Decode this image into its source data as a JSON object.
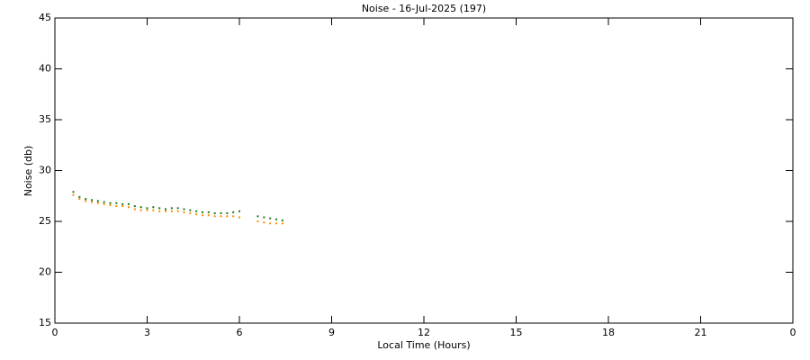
{
  "chart_data": {
    "type": "scatter",
    "title": "Noise - 16-Jul-2025 (197)",
    "x_label": "Local Time (Hours)",
    "y_label": "Noise (db)",
    "xlim": [
      0,
      24
    ],
    "ylim": [
      15,
      45
    ],
    "xticks": [
      0,
      3,
      6,
      9,
      12,
      15,
      18,
      21,
      {
        "value": 24,
        "label": "0"
      }
    ],
    "yticks": [
      15,
      20,
      25,
      30,
      35,
      40,
      45
    ],
    "series": [
      {
        "color": "#1a7a1a",
        "x": [
          0.6,
          0.8,
          1.0,
          1.2,
          1.4,
          1.6,
          1.8,
          2.0,
          2.2,
          2.4,
          2.6,
          2.8,
          3.0,
          3.2,
          3.4,
          3.6,
          3.8,
          4.0,
          4.2,
          4.4,
          4.6,
          4.8,
          5.0,
          5.2,
          5.4,
          5.6,
          5.8,
          6.0,
          6.6,
          6.8,
          7.0,
          7.2,
          7.4
        ],
        "values": [
          27.9,
          27.4,
          27.2,
          27.1,
          27.0,
          26.9,
          26.8,
          26.8,
          26.7,
          26.7,
          26.5,
          26.4,
          26.3,
          26.4,
          26.3,
          26.2,
          26.3,
          26.3,
          26.2,
          26.1,
          26.0,
          25.9,
          25.9,
          25.8,
          25.8,
          25.8,
          25.9,
          26.0,
          25.5,
          25.4,
          25.3,
          25.2,
          25.1
        ]
      },
      {
        "color": "#ff8c00",
        "x": [
          0.6,
          0.8,
          1.0,
          1.2,
          1.4,
          1.6,
          1.8,
          2.0,
          2.2,
          2.4,
          2.6,
          2.8,
          3.0,
          3.2,
          3.4,
          3.6,
          3.8,
          4.0,
          4.2,
          4.4,
          4.6,
          4.8,
          5.0,
          5.2,
          5.4,
          5.6,
          5.8,
          6.0,
          6.6,
          6.8,
          7.0,
          7.2,
          7.4
        ],
        "values": [
          27.6,
          27.2,
          27.0,
          26.9,
          26.8,
          26.7,
          26.6,
          26.5,
          26.5,
          26.4,
          26.2,
          26.1,
          26.1,
          26.1,
          26.0,
          26.0,
          26.0,
          26.0,
          25.9,
          25.8,
          25.7,
          25.6,
          25.6,
          25.5,
          25.5,
          25.5,
          25.5,
          25.4,
          25.0,
          24.9,
          24.8,
          24.8,
          24.8
        ]
      }
    ]
  }
}
